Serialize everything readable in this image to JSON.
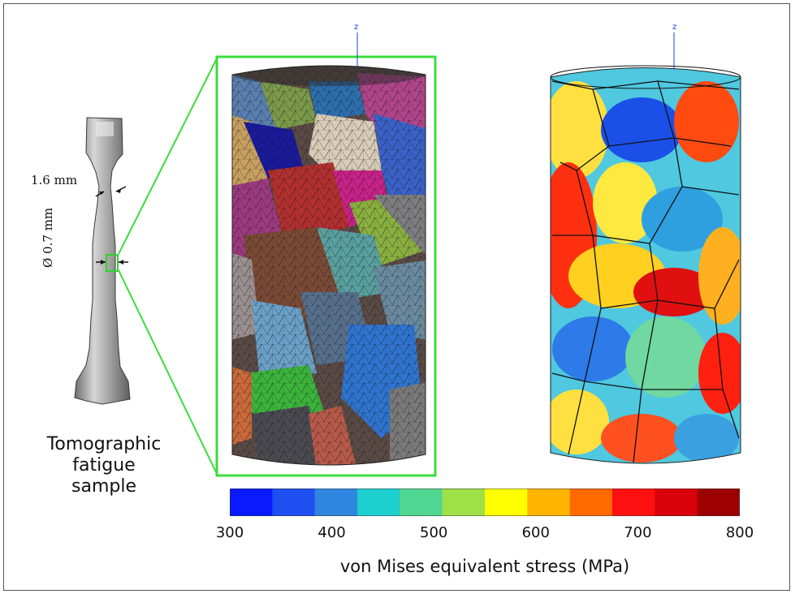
{
  "sample": {
    "dim_neck": "1.6 mm",
    "dim_gauge": "Ø 0.7 mm",
    "caption_line1": "Tomographic",
    "caption_line2": "fatigue sample"
  },
  "mesh_view": {
    "axis_label": "z"
  },
  "stress_view": {
    "axis_label": "z"
  },
  "colorbar": {
    "colors": [
      "#0a1aff",
      "#1f4ff0",
      "#2e86e0",
      "#1ecfcf",
      "#4fd690",
      "#9fe048",
      "#ffff00",
      "#ffb400",
      "#ff6a00",
      "#ff1010",
      "#d8000a",
      "#9c0000"
    ],
    "ticks": [
      "300",
      "400",
      "500",
      "600",
      "700",
      "800"
    ],
    "range": [
      300,
      800
    ],
    "label": "von Mises equivalent stress (MPa)"
  }
}
